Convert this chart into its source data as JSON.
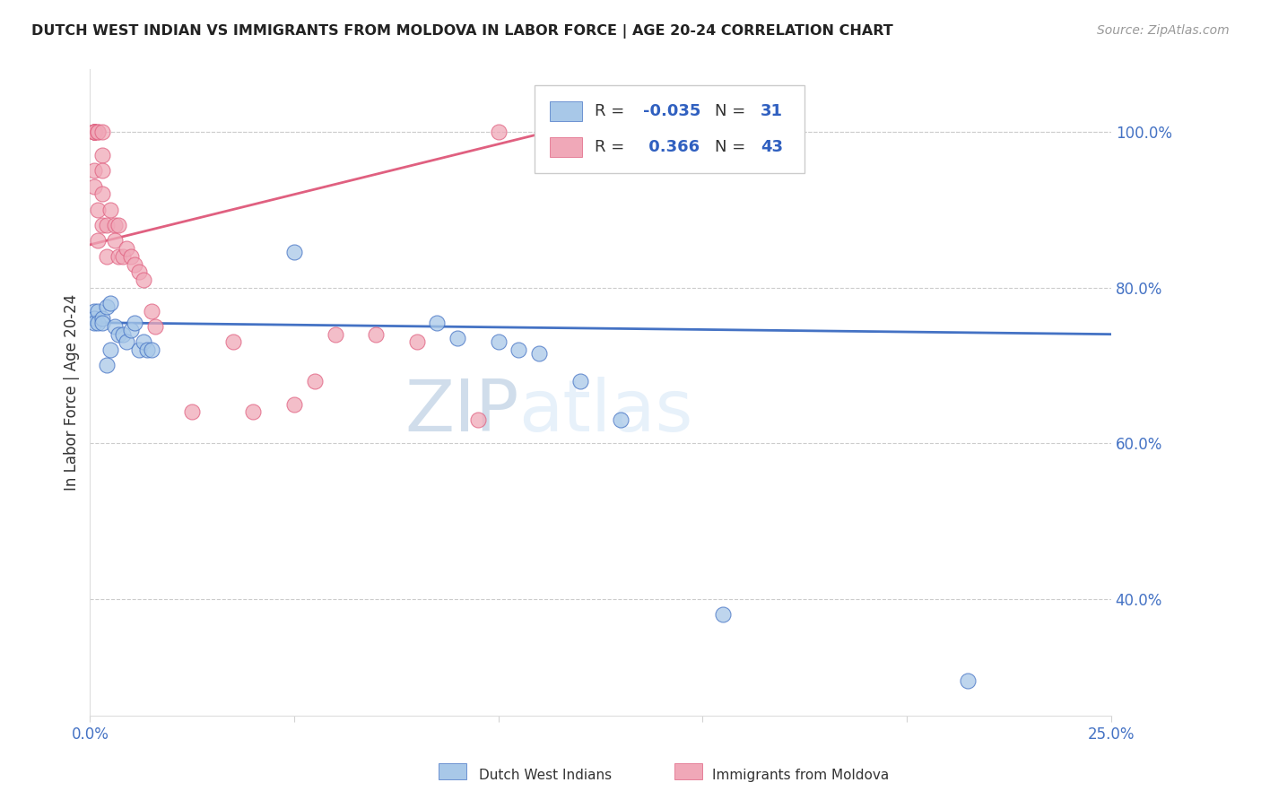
{
  "title": "DUTCH WEST INDIAN VS IMMIGRANTS FROM MOLDOVA IN LABOR FORCE | AGE 20-24 CORRELATION CHART",
  "source": "Source: ZipAtlas.com",
  "ylabel": "In Labor Force | Age 20-24",
  "yticks": [
    0.4,
    0.6,
    0.8,
    1.0
  ],
  "ytick_labels": [
    "40.0%",
    "60.0%",
    "80.0%",
    "100.0%"
  ],
  "blue_label": "Dutch West Indians",
  "pink_label": "Immigrants from Moldova",
  "blue_R": -0.035,
  "blue_N": 31,
  "pink_R": 0.366,
  "pink_N": 43,
  "blue_color": "#a8c8e8",
  "pink_color": "#f0a8b8",
  "blue_line_color": "#4472c4",
  "pink_line_color": "#e06080",
  "legend_color": "#3060c0",
  "xmin": 0.0,
  "xmax": 0.25,
  "ymin": 0.25,
  "ymax": 1.08,
  "blue_x": [
    0.001,
    0.001,
    0.001,
    0.002,
    0.002,
    0.003,
    0.003,
    0.004,
    0.004,
    0.005,
    0.005,
    0.006,
    0.007,
    0.008,
    0.009,
    0.01,
    0.011,
    0.012,
    0.013,
    0.014,
    0.015,
    0.05,
    0.085,
    0.09,
    0.1,
    0.105,
    0.11,
    0.12,
    0.13,
    0.155,
    0.215
  ],
  "blue_y": [
    0.77,
    0.76,
    0.755,
    0.77,
    0.755,
    0.76,
    0.755,
    0.775,
    0.7,
    0.78,
    0.72,
    0.75,
    0.74,
    0.74,
    0.73,
    0.745,
    0.755,
    0.72,
    0.73,
    0.72,
    0.72,
    0.845,
    0.755,
    0.735,
    0.73,
    0.72,
    0.715,
    0.68,
    0.63,
    0.38,
    0.295
  ],
  "pink_x": [
    0.001,
    0.001,
    0.001,
    0.001,
    0.001,
    0.001,
    0.001,
    0.001,
    0.002,
    0.002,
    0.002,
    0.002,
    0.003,
    0.003,
    0.003,
    0.003,
    0.003,
    0.004,
    0.004,
    0.005,
    0.006,
    0.006,
    0.007,
    0.007,
    0.008,
    0.009,
    0.01,
    0.011,
    0.012,
    0.013,
    0.015,
    0.016,
    0.025,
    0.035,
    0.04,
    0.05,
    0.055,
    0.06,
    0.07,
    0.08,
    0.095,
    0.1,
    0.12
  ],
  "pink_y": [
    1.0,
    1.0,
    1.0,
    1.0,
    1.0,
    1.0,
    0.95,
    0.93,
    1.0,
    1.0,
    0.9,
    0.86,
    1.0,
    0.97,
    0.95,
    0.92,
    0.88,
    0.88,
    0.84,
    0.9,
    0.88,
    0.86,
    0.88,
    0.84,
    0.84,
    0.85,
    0.84,
    0.83,
    0.82,
    0.81,
    0.77,
    0.75,
    0.64,
    0.73,
    0.64,
    0.65,
    0.68,
    0.74,
    0.74,
    0.73,
    0.63,
    1.0,
    1.0
  ],
  "watermark_zip": "ZIP",
  "watermark_atlas": "atlas",
  "blue_trendline_x0": 0.0,
  "blue_trendline_x1": 0.25,
  "blue_trendline_y0": 0.755,
  "blue_trendline_y1": 0.74,
  "pink_trendline_x0": 0.0,
  "pink_trendline_x1": 0.12,
  "pink_trendline_y0": 0.855,
  "pink_trendline_y1": 1.01
}
